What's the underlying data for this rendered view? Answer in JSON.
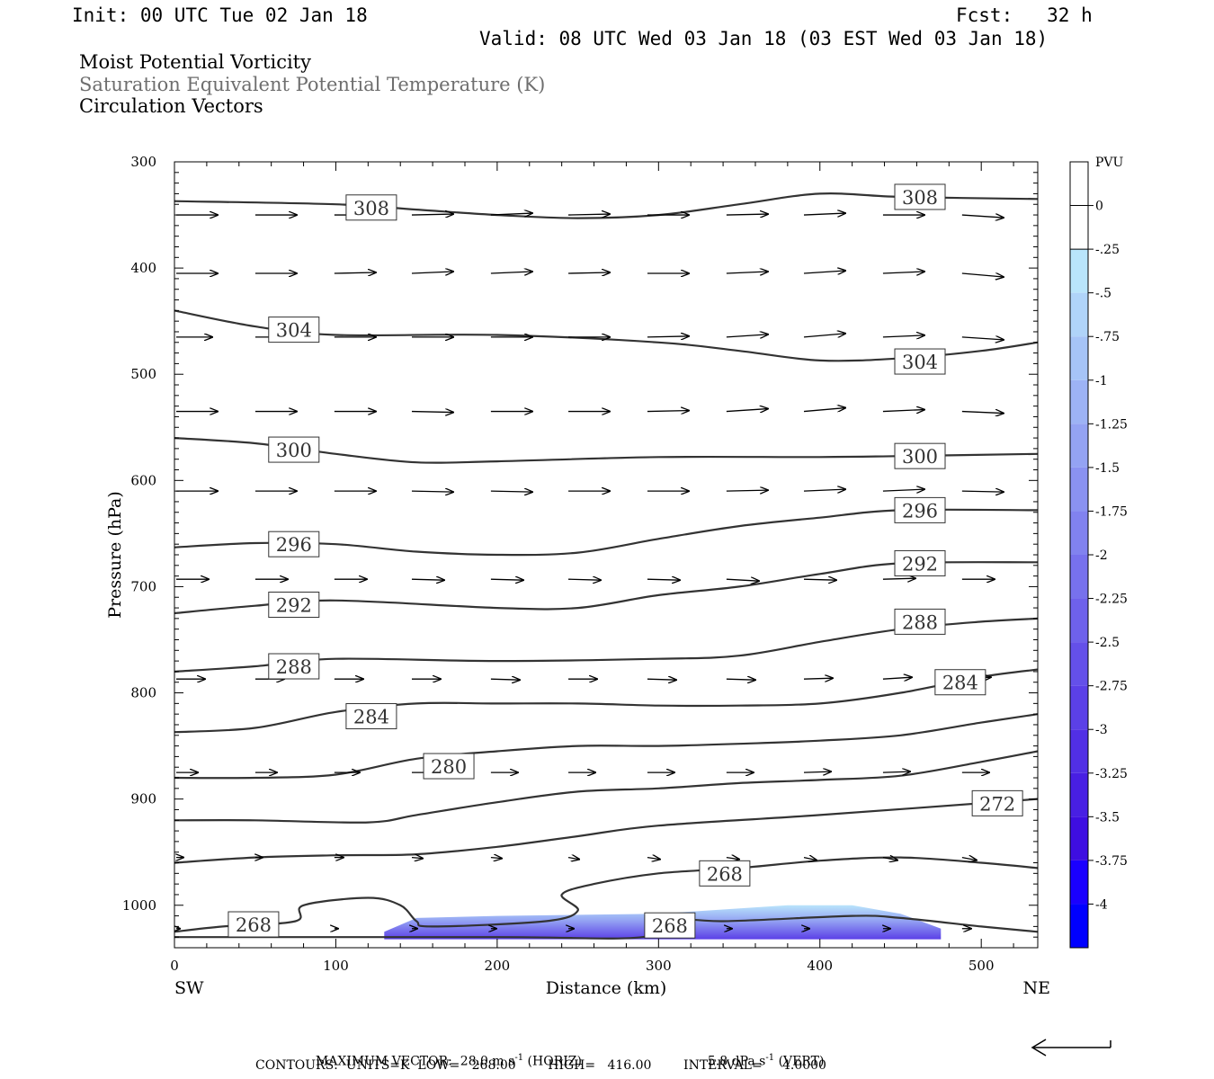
{
  "header": {
    "init": "Init: 00 UTC Tue 02 Jan 18",
    "fcst": "Fcst:   32 h",
    "valid": "Valid: 08 UTC Wed 03 Jan 18 (03 EST Wed 03 Jan 18)"
  },
  "fields": [
    {
      "label": "Moist Potential Vorticity",
      "color": "#000000"
    },
    {
      "label": "Saturation Equivalent Potential Temperature (K)",
      "color": "#6e6e6e"
    },
    {
      "label": "Circulation Vectors",
      "color": "#000000"
    }
  ],
  "footer": {
    "max_vector_label": "MAXIMUM VECTOR:",
    "horiz_value": "28.0 m s",
    "horiz_unit_suffix": "(HORIZ)",
    "vert_value": "5.8 dPa s",
    "vert_unit_suffix": "(VERT)",
    "exponent": "-1",
    "contours": "CONTOURS:  UNITS=K  LOW=   268.00        HIGH=   416.00        INTERVAL=     4.0000"
  },
  "chart_data": {
    "type": "cross-section",
    "xlabel": "Distance (km)",
    "ylabel": "Pressure (hPa)",
    "x_left_label": "SW",
    "x_right_label": "NE",
    "xlim": [
      0,
      535
    ],
    "ylim": [
      1040,
      300
    ],
    "x_ticks": [
      0,
      100,
      200,
      300,
      400,
      500
    ],
    "y_ticks": [
      300,
      400,
      500,
      600,
      700,
      800,
      900,
      1000
    ],
    "contours": [
      {
        "level": 308,
        "label": "308",
        "points": [
          [
            0,
            337
          ],
          [
            100,
            340
          ],
          [
            150,
            345
          ],
          [
            200,
            350
          ],
          [
            250,
            353
          ],
          [
            300,
            350
          ],
          [
            350,
            340
          ],
          [
            400,
            330
          ],
          [
            450,
            333
          ],
          [
            535,
            335
          ]
        ],
        "labels_at": [
          [
            122,
            343
          ],
          [
            462,
            333
          ]
        ]
      },
      {
        "level": 304,
        "label": "304",
        "points": [
          [
            0,
            440
          ],
          [
            50,
            455
          ],
          [
            100,
            463
          ],
          [
            200,
            463
          ],
          [
            300,
            470
          ],
          [
            350,
            478
          ],
          [
            400,
            487
          ],
          [
            450,
            485
          ],
          [
            500,
            478
          ],
          [
            535,
            470
          ]
        ],
        "labels_at": [
          [
            74,
            458
          ],
          [
            462,
            488
          ]
        ]
      },
      {
        "level": 300,
        "label": "300",
        "points": [
          [
            0,
            560
          ],
          [
            50,
            565
          ],
          [
            100,
            575
          ],
          [
            150,
            583
          ],
          [
            200,
            582
          ],
          [
            300,
            578
          ],
          [
            400,
            578
          ],
          [
            450,
            577
          ],
          [
            535,
            575
          ]
        ],
        "labels_at": [
          [
            74,
            571
          ],
          [
            462,
            577
          ]
        ]
      },
      {
        "level": 296,
        "label": "296",
        "points": [
          [
            0,
            663
          ],
          [
            50,
            659
          ],
          [
            100,
            660
          ],
          [
            150,
            667
          ],
          [
            200,
            670
          ],
          [
            250,
            668
          ],
          [
            300,
            655
          ],
          [
            350,
            643
          ],
          [
            400,
            635
          ],
          [
            450,
            628
          ],
          [
            535,
            628
          ]
        ],
        "labels_at": [
          [
            74,
            660
          ],
          [
            462,
            628
          ]
        ]
      },
      {
        "level": 292,
        "label": "292",
        "points": [
          [
            0,
            725
          ],
          [
            50,
            718
          ],
          [
            100,
            713
          ],
          [
            200,
            720
          ],
          [
            250,
            720
          ],
          [
            300,
            708
          ],
          [
            350,
            700
          ],
          [
            400,
            688
          ],
          [
            450,
            678
          ],
          [
            535,
            677
          ]
        ],
        "labels_at": [
          [
            74,
            717
          ],
          [
            462,
            678
          ]
        ]
      },
      {
        "level": 288,
        "label": "288",
        "points": [
          [
            0,
            780
          ],
          [
            50,
            775
          ],
          [
            100,
            768
          ],
          [
            200,
            770
          ],
          [
            300,
            768
          ],
          [
            350,
            765
          ],
          [
            400,
            752
          ],
          [
            450,
            740
          ],
          [
            500,
            733
          ],
          [
            535,
            730
          ]
        ],
        "labels_at": [
          [
            74,
            775
          ],
          [
            462,
            733
          ]
        ]
      },
      {
        "level": 284,
        "label": "284",
        "points": [
          [
            0,
            837
          ],
          [
            50,
            833
          ],
          [
            100,
            818
          ],
          [
            150,
            810
          ],
          [
            200,
            810
          ],
          [
            250,
            810
          ],
          [
            300,
            812
          ],
          [
            350,
            812
          ],
          [
            400,
            810
          ],
          [
            450,
            800
          ],
          [
            500,
            785
          ],
          [
            535,
            778
          ]
        ],
        "labels_at": [
          [
            122,
            822
          ],
          [
            487,
            790
          ]
        ]
      },
      {
        "level": 280,
        "label": "280",
        "points": [
          [
            0,
            880
          ],
          [
            50,
            880
          ],
          [
            100,
            877
          ],
          [
            150,
            862
          ],
          [
            200,
            855
          ],
          [
            250,
            850
          ],
          [
            300,
            850
          ],
          [
            350,
            848
          ],
          [
            400,
            845
          ],
          [
            450,
            840
          ],
          [
            500,
            828
          ],
          [
            535,
            820
          ]
        ],
        "labels_at": [
          [
            170,
            869
          ]
        ]
      },
      {
        "level": 276,
        "label": "",
        "points": [
          [
            0,
            920
          ],
          [
            50,
            920
          ],
          [
            120,
            922
          ],
          [
            150,
            915
          ],
          [
            200,
            903
          ],
          [
            250,
            893
          ],
          [
            300,
            890
          ],
          [
            350,
            885
          ],
          [
            400,
            882
          ],
          [
            450,
            878
          ],
          [
            500,
            865
          ],
          [
            535,
            855
          ]
        ],
        "labels_at": []
      },
      {
        "level": 272,
        "label": "272",
        "points": [
          [
            0,
            960
          ],
          [
            50,
            955
          ],
          [
            100,
            953
          ],
          [
            150,
            952
          ],
          [
            200,
            945
          ],
          [
            250,
            935
          ],
          [
            300,
            925
          ],
          [
            400,
            915
          ],
          [
            535,
            900
          ]
        ],
        "labels_at": [
          [
            510,
            904
          ]
        ]
      },
      {
        "level": 268,
        "label": "268",
        "points": [
          [
            0,
            1025
          ],
          [
            30,
            1020
          ],
          [
            75,
            1015
          ],
          [
            80,
            1000
          ],
          [
            120,
            993
          ],
          [
            140,
            1000
          ],
          [
            150,
            1015
          ],
          [
            160,
            1020
          ],
          [
            230,
            1015
          ],
          [
            250,
            1005
          ],
          [
            240,
            990
          ],
          [
            260,
            980
          ],
          [
            300,
            970
          ],
          [
            350,
            965
          ],
          [
            400,
            958
          ],
          [
            450,
            955
          ],
          [
            500,
            960
          ],
          [
            535,
            965
          ]
        ],
        "labels_at": [
          [
            341,
            970
          ]
        ]
      },
      {
        "level": 268,
        "label": "268",
        "points": [
          [
            0,
            1030
          ],
          [
            200,
            1030
          ],
          [
            290,
            1030
          ],
          [
            300,
            1012
          ],
          [
            340,
            1015
          ],
          [
            420,
            1010
          ],
          [
            450,
            1012
          ],
          [
            500,
            1020
          ],
          [
            535,
            1025
          ]
        ],
        "labels_at": [
          [
            49,
            1018
          ],
          [
            307,
            1019
          ]
        ]
      }
    ],
    "mpv_fill": {
      "x_range": [
        130,
        475
      ],
      "min_value": -3,
      "note_value": -0.25
    },
    "colorbar": {
      "unit": "PVU",
      "labels": [
        "0",
        "-.25",
        "-.5",
        "-.75",
        "-1",
        "-1.25",
        "-1.5",
        "-1.75",
        "-2",
        "-2.25",
        "-2.5",
        "-2.75",
        "-3",
        "-3.25",
        "-3.5",
        "-3.75",
        "-4"
      ],
      "colors": [
        "#ffffff",
        "#ffffff",
        "#b9e5fb",
        "#b0d4f9",
        "#a6c4f7",
        "#9db3f5",
        "#94a3f3",
        "#8a92f1",
        "#8182ef",
        "#7771ed",
        "#6e61eb",
        "#6450e9",
        "#5b40e7",
        "#512fe5",
        "#481fe3",
        "#3e0ee1",
        "#1a00ff"
      ]
    },
    "vectors": {
      "rows_p": [
        350,
        405,
        465,
        535,
        610,
        693,
        787,
        875,
        955,
        1022
      ],
      "cols_x": [
        0,
        49,
        98,
        146,
        195,
        243,
        292,
        341,
        389,
        438,
        487
      ],
      "u": [
        [
          46,
          46,
          46,
          46,
          46,
          46,
          46,
          46,
          46,
          46,
          46
        ],
        [
          46,
          46,
          46,
          46,
          46,
          46,
          46,
          46,
          46,
          46,
          46
        ],
        [
          40,
          46,
          46,
          46,
          46,
          46,
          46,
          46,
          46,
          46,
          46
        ],
        [
          46,
          46,
          46,
          46,
          46,
          46,
          46,
          46,
          46,
          46,
          46
        ],
        [
          46,
          46,
          46,
          46,
          46,
          46,
          46,
          46,
          46,
          46,
          46
        ],
        [
          36,
          36,
          36,
          36,
          36,
          36,
          36,
          36,
          36,
          36,
          36
        ],
        [
          32,
          32,
          32,
          32,
          32,
          32,
          32,
          32,
          32,
          32,
          32
        ],
        [
          24,
          24,
          28,
          28,
          30,
          30,
          30,
          30,
          30,
          30,
          30
        ],
        [
          8,
          8,
          10,
          12,
          12,
          12,
          14,
          14,
          14,
          16,
          16
        ],
        [
          4,
          4,
          4,
          6,
          6,
          6,
          6,
          6,
          6,
          8,
          10
        ]
      ],
      "v": [
        [
          0,
          0,
          0,
          -1,
          -2,
          -1,
          0,
          -1,
          -2,
          0,
          3
        ],
        [
          0,
          0,
          -1,
          -2,
          -2,
          -1,
          0,
          -2,
          -3,
          -2,
          4
        ],
        [
          0,
          0,
          0,
          0,
          0,
          0,
          -1,
          -3,
          -4,
          -2,
          3
        ],
        [
          0,
          0,
          0,
          1,
          0,
          0,
          -1,
          -3,
          -4,
          -2,
          2
        ],
        [
          0,
          0,
          0,
          1,
          1,
          0,
          0,
          -1,
          -2,
          -2,
          1
        ],
        [
          0,
          0,
          0,
          1,
          1,
          1,
          1,
          2,
          1,
          -1,
          0
        ],
        [
          0,
          0,
          0,
          0,
          1,
          0,
          1,
          1,
          -1,
          -2,
          -2
        ],
        [
          0,
          0,
          0,
          0,
          0,
          0,
          0,
          0,
          -1,
          -1,
          0
        ],
        [
          0,
          0,
          0,
          1,
          1,
          2,
          2,
          2,
          3,
          3,
          3
        ],
        [
          0,
          0,
          0,
          0,
          0,
          0,
          0,
          0,
          0,
          0,
          0
        ]
      ]
    }
  }
}
